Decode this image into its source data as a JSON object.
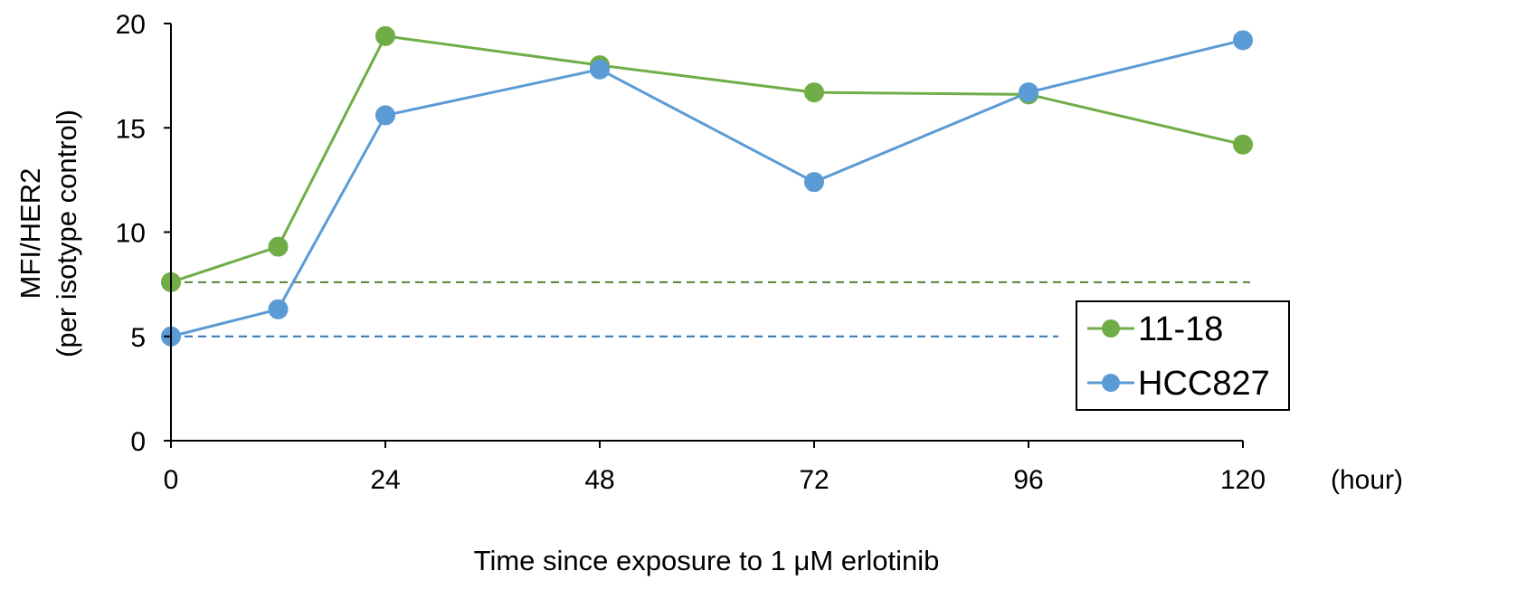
{
  "chart_data": {
    "type": "line",
    "xlabel": "Time since exposure to 1 μM erlotinib",
    "x_unit_label": "(hour)",
    "ylabel_line1": "MFI/HER2",
    "ylabel_line2": "(per isotype control)",
    "xlim": [
      0,
      120
    ],
    "ylim": [
      0,
      20
    ],
    "x_ticks": [
      0,
      24,
      48,
      72,
      96,
      120
    ],
    "y_ticks": [
      0,
      5,
      10,
      15,
      20
    ],
    "grid": false,
    "legend_position": "right",
    "series": [
      {
        "name": "11-18",
        "color": "#70ad47",
        "x": [
          0,
          12,
          24,
          48,
          72,
          96,
          120
        ],
        "y": [
          7.6,
          9.3,
          19.4,
          18.0,
          16.7,
          16.6,
          14.2
        ],
        "baseline": 7.6,
        "baseline_color": "#548235"
      },
      {
        "name": "HCC827",
        "color": "#5b9bd5",
        "x": [
          0,
          12,
          24,
          48,
          72,
          96,
          120
        ],
        "y": [
          5.0,
          6.3,
          15.6,
          17.8,
          12.4,
          16.7,
          19.2
        ],
        "baseline": 5.0,
        "baseline_color": "#2e75b6"
      }
    ]
  }
}
